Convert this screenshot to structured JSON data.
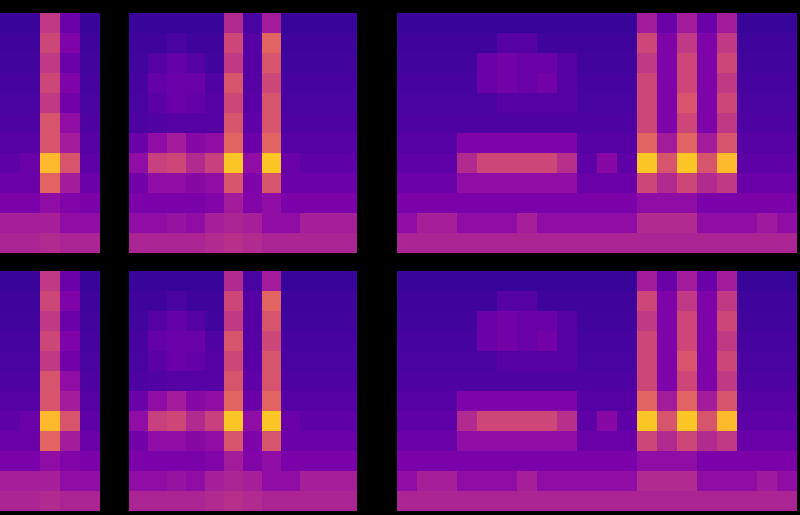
{
  "chart_data": [
    {
      "type": "heatmap",
      "color": "plasma",
      "zlim": [
        0,
        1
      ],
      "tick_labels": false,
      "cells": [
        [
          0.08,
          0.08,
          0.45,
          0.2,
          0.08
        ],
        [
          0.09,
          0.09,
          0.5,
          0.25,
          0.09
        ],
        [
          0.1,
          0.1,
          0.45,
          0.2,
          0.1
        ],
        [
          0.11,
          0.11,
          0.5,
          0.25,
          0.11
        ],
        [
          0.12,
          0.12,
          0.45,
          0.22,
          0.12
        ],
        [
          0.13,
          0.13,
          0.55,
          0.3,
          0.13
        ],
        [
          0.15,
          0.15,
          0.55,
          0.35,
          0.15
        ],
        [
          0.17,
          0.2,
          0.85,
          0.55,
          0.17
        ],
        [
          0.2,
          0.2,
          0.6,
          0.35,
          0.2
        ],
        [
          0.24,
          0.24,
          0.3,
          0.26,
          0.24
        ],
        [
          0.36,
          0.36,
          0.36,
          0.3,
          0.3
        ],
        [
          0.38,
          0.38,
          0.4,
          0.38,
          0.38
        ]
      ]
    },
    {
      "type": "heatmap",
      "color": "plasma",
      "zlim": [
        0,
        1
      ],
      "tick_labels": false,
      "cells": [
        [
          0.08,
          0.08,
          0.08,
          0.08,
          0.08,
          0.4,
          0.12,
          0.35,
          0.08,
          0.08,
          0.08,
          0.08
        ],
        [
          0.09,
          0.09,
          0.12,
          0.09,
          0.09,
          0.5,
          0.15,
          0.6,
          0.09,
          0.09,
          0.09,
          0.09
        ],
        [
          0.1,
          0.15,
          0.18,
          0.15,
          0.1,
          0.45,
          0.15,
          0.55,
          0.1,
          0.1,
          0.1,
          0.1
        ],
        [
          0.11,
          0.18,
          0.2,
          0.2,
          0.14,
          0.55,
          0.15,
          0.5,
          0.11,
          0.11,
          0.11,
          0.11
        ],
        [
          0.12,
          0.16,
          0.2,
          0.18,
          0.15,
          0.5,
          0.16,
          0.55,
          0.12,
          0.12,
          0.12,
          0.12
        ],
        [
          0.13,
          0.14,
          0.15,
          0.15,
          0.15,
          0.55,
          0.17,
          0.55,
          0.13,
          0.13,
          0.13,
          0.13
        ],
        [
          0.2,
          0.3,
          0.35,
          0.28,
          0.3,
          0.6,
          0.2,
          0.6,
          0.15,
          0.15,
          0.15,
          0.15
        ],
        [
          0.3,
          0.48,
          0.5,
          0.4,
          0.48,
          0.88,
          0.3,
          0.88,
          0.2,
          0.17,
          0.17,
          0.17
        ],
        [
          0.22,
          0.3,
          0.3,
          0.28,
          0.3,
          0.55,
          0.25,
          0.55,
          0.2,
          0.2,
          0.2,
          0.2
        ],
        [
          0.24,
          0.24,
          0.24,
          0.24,
          0.26,
          0.35,
          0.26,
          0.3,
          0.24,
          0.24,
          0.24,
          0.24
        ],
        [
          0.3,
          0.3,
          0.32,
          0.3,
          0.36,
          0.38,
          0.36,
          0.3,
          0.3,
          0.36,
          0.36,
          0.36
        ],
        [
          0.38,
          0.38,
          0.38,
          0.38,
          0.4,
          0.42,
          0.4,
          0.38,
          0.38,
          0.38,
          0.38,
          0.38
        ]
      ]
    },
    {
      "type": "heatmap",
      "color": "plasma",
      "zlim": [
        0,
        1
      ],
      "tick_labels": false,
      "cells": [
        [
          0.08,
          0.08,
          0.08,
          0.08,
          0.08,
          0.08,
          0.08,
          0.08,
          0.08,
          0.08,
          0.08,
          0.08,
          0.35,
          0.2,
          0.35,
          0.2,
          0.35,
          0.08,
          0.08,
          0.08
        ],
        [
          0.09,
          0.09,
          0.09,
          0.09,
          0.09,
          0.15,
          0.15,
          0.09,
          0.09,
          0.09,
          0.09,
          0.09,
          0.5,
          0.25,
          0.45,
          0.25,
          0.45,
          0.09,
          0.09,
          0.09
        ],
        [
          0.1,
          0.1,
          0.1,
          0.1,
          0.2,
          0.22,
          0.2,
          0.2,
          0.15,
          0.1,
          0.1,
          0.1,
          0.45,
          0.25,
          0.5,
          0.25,
          0.5,
          0.1,
          0.1,
          0.1
        ],
        [
          0.11,
          0.11,
          0.11,
          0.11,
          0.2,
          0.22,
          0.2,
          0.22,
          0.15,
          0.11,
          0.11,
          0.11,
          0.5,
          0.25,
          0.5,
          0.25,
          0.45,
          0.11,
          0.11,
          0.11
        ],
        [
          0.12,
          0.12,
          0.12,
          0.12,
          0.12,
          0.15,
          0.15,
          0.15,
          0.15,
          0.12,
          0.12,
          0.12,
          0.5,
          0.25,
          0.55,
          0.25,
          0.5,
          0.12,
          0.12,
          0.12
        ],
        [
          0.13,
          0.13,
          0.13,
          0.13,
          0.13,
          0.13,
          0.13,
          0.13,
          0.13,
          0.13,
          0.13,
          0.13,
          0.5,
          0.25,
          0.5,
          0.25,
          0.45,
          0.13,
          0.13,
          0.13
        ],
        [
          0.15,
          0.15,
          0.15,
          0.25,
          0.25,
          0.25,
          0.25,
          0.25,
          0.25,
          0.15,
          0.15,
          0.15,
          0.6,
          0.35,
          0.6,
          0.35,
          0.55,
          0.15,
          0.15,
          0.15
        ],
        [
          0.17,
          0.17,
          0.17,
          0.4,
          0.5,
          0.5,
          0.5,
          0.5,
          0.42,
          0.17,
          0.28,
          0.17,
          0.88,
          0.55,
          0.88,
          0.55,
          0.85,
          0.17,
          0.17,
          0.17
        ],
        [
          0.2,
          0.2,
          0.2,
          0.3,
          0.3,
          0.3,
          0.3,
          0.3,
          0.3,
          0.2,
          0.2,
          0.2,
          0.5,
          0.4,
          0.5,
          0.4,
          0.45,
          0.2,
          0.2,
          0.2
        ],
        [
          0.24,
          0.24,
          0.24,
          0.24,
          0.24,
          0.24,
          0.24,
          0.24,
          0.24,
          0.24,
          0.24,
          0.24,
          0.3,
          0.3,
          0.3,
          0.24,
          0.24,
          0.24,
          0.24,
          0.24
        ],
        [
          0.3,
          0.36,
          0.36,
          0.3,
          0.3,
          0.3,
          0.36,
          0.3,
          0.3,
          0.3,
          0.3,
          0.3,
          0.4,
          0.4,
          0.4,
          0.3,
          0.3,
          0.3,
          0.34,
          0.3
        ],
        [
          0.38,
          0.38,
          0.38,
          0.38,
          0.38,
          0.38,
          0.38,
          0.38,
          0.38,
          0.38,
          0.38,
          0.38,
          0.38,
          0.38,
          0.38,
          0.38,
          0.38,
          0.38,
          0.38,
          0.38
        ]
      ]
    },
    {
      "type": "heatmap",
      "color": "plasma",
      "zlim": [
        0,
        1
      ],
      "tick_labels": false,
      "cells": [
        [
          0.08,
          0.08,
          0.45,
          0.2,
          0.08
        ],
        [
          0.09,
          0.09,
          0.5,
          0.25,
          0.09
        ],
        [
          0.1,
          0.1,
          0.45,
          0.2,
          0.1
        ],
        [
          0.11,
          0.11,
          0.5,
          0.25,
          0.11
        ],
        [
          0.12,
          0.12,
          0.45,
          0.22,
          0.12
        ],
        [
          0.13,
          0.13,
          0.55,
          0.3,
          0.13
        ],
        [
          0.15,
          0.15,
          0.55,
          0.35,
          0.15
        ],
        [
          0.17,
          0.2,
          0.85,
          0.55,
          0.17
        ],
        [
          0.2,
          0.2,
          0.6,
          0.35,
          0.2
        ],
        [
          0.24,
          0.24,
          0.3,
          0.26,
          0.24
        ],
        [
          0.36,
          0.36,
          0.36,
          0.3,
          0.3
        ],
        [
          0.38,
          0.38,
          0.4,
          0.38,
          0.38
        ]
      ]
    },
    {
      "type": "heatmap",
      "color": "plasma",
      "zlim": [
        0,
        1
      ],
      "tick_labels": false,
      "cells": [
        [
          0.08,
          0.08,
          0.08,
          0.08,
          0.08,
          0.4,
          0.12,
          0.35,
          0.08,
          0.08,
          0.08,
          0.08
        ],
        [
          0.09,
          0.09,
          0.12,
          0.09,
          0.09,
          0.5,
          0.15,
          0.6,
          0.09,
          0.09,
          0.09,
          0.09
        ],
        [
          0.1,
          0.15,
          0.18,
          0.15,
          0.1,
          0.45,
          0.15,
          0.55,
          0.1,
          0.1,
          0.1,
          0.1
        ],
        [
          0.11,
          0.18,
          0.2,
          0.2,
          0.14,
          0.55,
          0.15,
          0.5,
          0.11,
          0.11,
          0.11,
          0.11
        ],
        [
          0.12,
          0.16,
          0.2,
          0.18,
          0.15,
          0.5,
          0.16,
          0.55,
          0.12,
          0.12,
          0.12,
          0.12
        ],
        [
          0.13,
          0.14,
          0.15,
          0.15,
          0.15,
          0.55,
          0.17,
          0.55,
          0.13,
          0.13,
          0.13,
          0.13
        ],
        [
          0.2,
          0.3,
          0.35,
          0.28,
          0.3,
          0.6,
          0.2,
          0.6,
          0.15,
          0.15,
          0.15,
          0.15
        ],
        [
          0.3,
          0.48,
          0.5,
          0.4,
          0.48,
          0.88,
          0.3,
          0.88,
          0.2,
          0.17,
          0.17,
          0.17
        ],
        [
          0.22,
          0.3,
          0.3,
          0.28,
          0.3,
          0.55,
          0.25,
          0.55,
          0.2,
          0.2,
          0.2,
          0.2
        ],
        [
          0.24,
          0.24,
          0.24,
          0.24,
          0.26,
          0.35,
          0.26,
          0.3,
          0.24,
          0.24,
          0.24,
          0.24
        ],
        [
          0.3,
          0.3,
          0.32,
          0.3,
          0.36,
          0.38,
          0.36,
          0.3,
          0.3,
          0.36,
          0.36,
          0.36
        ],
        [
          0.38,
          0.38,
          0.38,
          0.38,
          0.4,
          0.42,
          0.4,
          0.38,
          0.38,
          0.38,
          0.38,
          0.38
        ]
      ]
    },
    {
      "type": "heatmap",
      "color": "plasma",
      "zlim": [
        0,
        1
      ],
      "tick_labels": false,
      "cells": [
        [
          0.08,
          0.08,
          0.08,
          0.08,
          0.08,
          0.08,
          0.08,
          0.08,
          0.08,
          0.08,
          0.08,
          0.08,
          0.35,
          0.2,
          0.35,
          0.2,
          0.35,
          0.08,
          0.08,
          0.08
        ],
        [
          0.09,
          0.09,
          0.09,
          0.09,
          0.09,
          0.15,
          0.15,
          0.09,
          0.09,
          0.09,
          0.09,
          0.09,
          0.5,
          0.25,
          0.45,
          0.25,
          0.45,
          0.09,
          0.09,
          0.09
        ],
        [
          0.1,
          0.1,
          0.1,
          0.1,
          0.2,
          0.22,
          0.2,
          0.2,
          0.15,
          0.1,
          0.1,
          0.1,
          0.45,
          0.25,
          0.5,
          0.25,
          0.5,
          0.1,
          0.1,
          0.1
        ],
        [
          0.11,
          0.11,
          0.11,
          0.11,
          0.2,
          0.22,
          0.2,
          0.22,
          0.15,
          0.11,
          0.11,
          0.11,
          0.5,
          0.25,
          0.5,
          0.25,
          0.45,
          0.11,
          0.11,
          0.11
        ],
        [
          0.12,
          0.12,
          0.12,
          0.12,
          0.12,
          0.15,
          0.15,
          0.15,
          0.15,
          0.12,
          0.12,
          0.12,
          0.5,
          0.25,
          0.55,
          0.25,
          0.5,
          0.12,
          0.12,
          0.12
        ],
        [
          0.13,
          0.13,
          0.13,
          0.13,
          0.13,
          0.13,
          0.13,
          0.13,
          0.13,
          0.13,
          0.13,
          0.13,
          0.5,
          0.25,
          0.5,
          0.25,
          0.45,
          0.13,
          0.13,
          0.13
        ],
        [
          0.15,
          0.15,
          0.15,
          0.25,
          0.25,
          0.25,
          0.25,
          0.25,
          0.25,
          0.15,
          0.15,
          0.15,
          0.6,
          0.35,
          0.6,
          0.35,
          0.55,
          0.15,
          0.15,
          0.15
        ],
        [
          0.17,
          0.17,
          0.17,
          0.4,
          0.5,
          0.5,
          0.5,
          0.5,
          0.42,
          0.17,
          0.28,
          0.17,
          0.88,
          0.55,
          0.88,
          0.55,
          0.85,
          0.17,
          0.17,
          0.17
        ],
        [
          0.2,
          0.2,
          0.2,
          0.3,
          0.3,
          0.3,
          0.3,
          0.3,
          0.3,
          0.2,
          0.2,
          0.2,
          0.5,
          0.4,
          0.5,
          0.4,
          0.45,
          0.2,
          0.2,
          0.2
        ],
        [
          0.24,
          0.24,
          0.24,
          0.24,
          0.24,
          0.24,
          0.24,
          0.24,
          0.24,
          0.24,
          0.24,
          0.24,
          0.3,
          0.3,
          0.3,
          0.24,
          0.24,
          0.24,
          0.24,
          0.24
        ],
        [
          0.3,
          0.36,
          0.36,
          0.3,
          0.3,
          0.3,
          0.36,
          0.3,
          0.3,
          0.3,
          0.3,
          0.3,
          0.4,
          0.4,
          0.4,
          0.3,
          0.3,
          0.3,
          0.34,
          0.3
        ],
        [
          0.38,
          0.38,
          0.38,
          0.38,
          0.38,
          0.38,
          0.38,
          0.38,
          0.38,
          0.38,
          0.38,
          0.38,
          0.38,
          0.38,
          0.38,
          0.38,
          0.38,
          0.38,
          0.38,
          0.38
        ]
      ]
    }
  ]
}
